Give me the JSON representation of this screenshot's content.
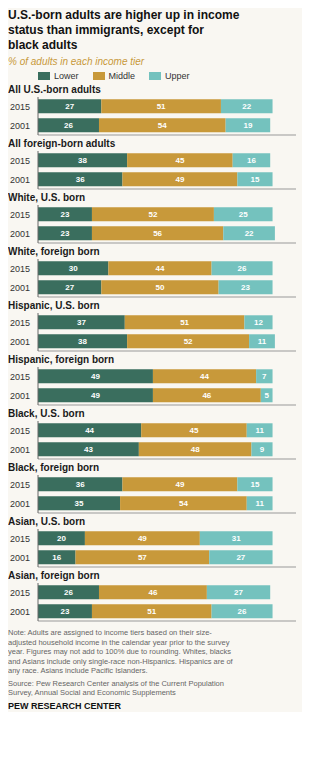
{
  "title": "U.S.-born adults are higher up in income\nstatus than immigrants, except for\nblack adults",
  "subtitle": "% of adults in each income tier",
  "legend": "top",
  "annotations": [
    "Note: Adults are assigned to income tiers based on their size-\nadjusted household income in the calendar year prior to the survey\nyear. Figures may not add to 100% due to rounding. Whites, blacks\nand Asians include only single-race non-Hispanics. Hispanics are of\nany race. Asians include Pacific Islanders.",
    "Source: Pew Research Center analysis of the Current Population\nSurvey, Annual Social and Economic Supplements",
    "PEW RESEARCH CENTER"
  ],
  "chart_data": [
    {
      "type": "bar",
      "title": "All U.S.-born adults",
      "orientation": "horizontal",
      "stacked": true,
      "data_labels": true,
      "tick_labels": "y",
      "xlim": [
        0,
        110
      ],
      "categories": [
        "2015",
        "2001"
      ],
      "series": [
        {
          "name": "Lower",
          "color": "#3a6e5e",
          "values": [
            27,
            26
          ]
        },
        {
          "name": "Middle",
          "color": "#c8993a",
          "values": [
            51,
            54
          ]
        },
        {
          "name": "Upper",
          "color": "#74c2be",
          "values": [
            22,
            19
          ]
        }
      ]
    },
    {
      "type": "bar",
      "title": "All foreign-born adults",
      "orientation": "horizontal",
      "stacked": true,
      "data_labels": true,
      "tick_labels": "y",
      "xlim": [
        0,
        110
      ],
      "categories": [
        "2015",
        "2001"
      ],
      "series": [
        {
          "name": "Lower",
          "color": "#3a6e5e",
          "values": [
            38,
            36
          ]
        },
        {
          "name": "Middle",
          "color": "#c8993a",
          "values": [
            45,
            49
          ]
        },
        {
          "name": "Upper",
          "color": "#74c2be",
          "values": [
            16,
            15
          ]
        }
      ]
    },
    {
      "type": "bar",
      "title": "White, U.S. born",
      "orientation": "horizontal",
      "stacked": true,
      "data_labels": true,
      "tick_labels": "y",
      "xlim": [
        0,
        110
      ],
      "categories": [
        "2015",
        "2001"
      ],
      "series": [
        {
          "name": "Lower",
          "color": "#3a6e5e",
          "values": [
            23,
            23
          ]
        },
        {
          "name": "Middle",
          "color": "#c8993a",
          "values": [
            52,
            56
          ]
        },
        {
          "name": "Upper",
          "color": "#74c2be",
          "values": [
            25,
            22
          ]
        }
      ]
    },
    {
      "type": "bar",
      "title": "White, foreign born",
      "orientation": "horizontal",
      "stacked": true,
      "data_labels": true,
      "tick_labels": "y",
      "xlim": [
        0,
        110
      ],
      "categories": [
        "2015",
        "2001"
      ],
      "series": [
        {
          "name": "Lower",
          "color": "#3a6e5e",
          "values": [
            30,
            27
          ]
        },
        {
          "name": "Middle",
          "color": "#c8993a",
          "values": [
            44,
            50
          ]
        },
        {
          "name": "Upper",
          "color": "#74c2be",
          "values": [
            26,
            23
          ]
        }
      ]
    },
    {
      "type": "bar",
      "title": "Hispanic, U.S. born",
      "orientation": "horizontal",
      "stacked": true,
      "data_labels": true,
      "tick_labels": "y",
      "xlim": [
        0,
        110
      ],
      "categories": [
        "2015",
        "2001"
      ],
      "series": [
        {
          "name": "Lower",
          "color": "#3a6e5e",
          "values": [
            37,
            38
          ]
        },
        {
          "name": "Middle",
          "color": "#c8993a",
          "values": [
            51,
            52
          ]
        },
        {
          "name": "Upper",
          "color": "#74c2be",
          "values": [
            12,
            11
          ]
        }
      ]
    },
    {
      "type": "bar",
      "title": "Hispanic, foreign born",
      "orientation": "horizontal",
      "stacked": true,
      "data_labels": true,
      "tick_labels": "y",
      "xlim": [
        0,
        110
      ],
      "categories": [
        "2015",
        "2001"
      ],
      "series": [
        {
          "name": "Lower",
          "color": "#3a6e5e",
          "values": [
            49,
            49
          ]
        },
        {
          "name": "Middle",
          "color": "#c8993a",
          "values": [
            44,
            46
          ]
        },
        {
          "name": "Upper",
          "color": "#74c2be",
          "values": [
            7,
            5
          ]
        }
      ]
    },
    {
      "type": "bar",
      "title": "Black, U.S. born",
      "orientation": "horizontal",
      "stacked": true,
      "data_labels": true,
      "tick_labels": "y",
      "xlim": [
        0,
        110
      ],
      "categories": [
        "2015",
        "2001"
      ],
      "series": [
        {
          "name": "Lower",
          "color": "#3a6e5e",
          "values": [
            44,
            43
          ]
        },
        {
          "name": "Middle",
          "color": "#c8993a",
          "values": [
            45,
            48
          ]
        },
        {
          "name": "Upper",
          "color": "#74c2be",
          "values": [
            11,
            9
          ]
        }
      ]
    },
    {
      "type": "bar",
      "title": "Black, foreign born",
      "orientation": "horizontal",
      "stacked": true,
      "data_labels": true,
      "tick_labels": "y",
      "xlim": [
        0,
        110
      ],
      "categories": [
        "2015",
        "2001"
      ],
      "series": [
        {
          "name": "Lower",
          "color": "#3a6e5e",
          "values": [
            36,
            35
          ]
        },
        {
          "name": "Middle",
          "color": "#c8993a",
          "values": [
            49,
            54
          ]
        },
        {
          "name": "Upper",
          "color": "#74c2be",
          "values": [
            15,
            11
          ]
        }
      ]
    },
    {
      "type": "bar",
      "title": "Asian, U.S. born",
      "orientation": "horizontal",
      "stacked": true,
      "data_labels": true,
      "tick_labels": "y",
      "xlim": [
        0,
        110
      ],
      "categories": [
        "2015",
        "2001"
      ],
      "series": [
        {
          "name": "Lower",
          "color": "#3a6e5e",
          "values": [
            20,
            16
          ]
        },
        {
          "name": "Middle",
          "color": "#c8993a",
          "values": [
            49,
            57
          ]
        },
        {
          "name": "Upper",
          "color": "#74c2be",
          "values": [
            31,
            27
          ]
        }
      ]
    },
    {
      "type": "bar",
      "title": "Asian, foreign born",
      "orientation": "horizontal",
      "stacked": true,
      "data_labels": true,
      "tick_labels": "y",
      "xlim": [
        0,
        110
      ],
      "categories": [
        "2015",
        "2001"
      ],
      "series": [
        {
          "name": "Lower",
          "color": "#3a6e5e",
          "values": [
            26,
            23
          ]
        },
        {
          "name": "Middle",
          "color": "#c8993a",
          "values": [
            46,
            51
          ]
        },
        {
          "name": "Upper",
          "color": "#74c2be",
          "values": [
            27,
            26
          ]
        }
      ]
    }
  ]
}
